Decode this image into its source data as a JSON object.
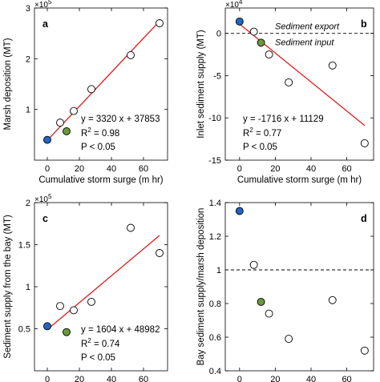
{
  "chart_data": [
    {
      "panel": "a",
      "type": "scatter",
      "xlabel": "Cumulative storm surge (m hr)",
      "ylabel": "Marsh deposition (MT)",
      "y_multiplier": "×10",
      "y_multiplier_exp": "5",
      "xlim": [
        -8,
        75
      ],
      "ylim": [
        0,
        3
      ],
      "xticks": [
        0,
        20,
        40,
        60
      ],
      "yticks": [
        1,
        2,
        3
      ],
      "points": [
        {
          "x": 0,
          "y": 0.4,
          "fill": "#2166c2"
        },
        {
          "x": 8,
          "y": 0.74,
          "fill": "#ffffff"
        },
        {
          "x": 12,
          "y": 0.57,
          "fill": "#6a9a3a"
        },
        {
          "x": 16.5,
          "y": 0.97,
          "fill": "#ffffff"
        },
        {
          "x": 27.5,
          "y": 1.4,
          "fill": "#ffffff"
        },
        {
          "x": 52,
          "y": 2.07,
          "fill": "#ffffff"
        },
        {
          "x": 70,
          "y": 2.7,
          "fill": "#ffffff"
        }
      ],
      "fit": {
        "x": [
          0,
          70
        ],
        "y": [
          0.39,
          2.74
        ],
        "color": "#e11b1b"
      },
      "annotations": [
        "y = 3320 x + 37853",
        "R",
        "2",
        " = 0.98",
        "P < 0.05"
      ]
    },
    {
      "panel": "b",
      "type": "scatter",
      "xlabel": "Cumulative storm surge (m hr)",
      "ylabel": "Inlet sediment supply (MT)",
      "y_multiplier": "×10",
      "y_multiplier_exp": "4",
      "xlim": [
        -8,
        75
      ],
      "ylim": [
        -15,
        3
      ],
      "xticks": [
        0,
        20,
        40,
        60
      ],
      "yticks": [
        -15,
        -10,
        -5,
        0
      ],
      "points": [
        {
          "x": 0,
          "y": 1.4,
          "fill": "#2166c2"
        },
        {
          "x": 8,
          "y": 0.2,
          "fill": "#ffffff"
        },
        {
          "x": 12,
          "y": -1.1,
          "fill": "#6a9a3a"
        },
        {
          "x": 16.5,
          "y": -2.5,
          "fill": "#ffffff"
        },
        {
          "x": 27.5,
          "y": -5.8,
          "fill": "#ffffff"
        },
        {
          "x": 52,
          "y": -3.8,
          "fill": "#ffffff"
        },
        {
          "x": 70,
          "y": -13.0,
          "fill": "#ffffff"
        }
      ],
      "fit": {
        "x": [
          0,
          70
        ],
        "y": [
          1.11,
          -10.9
        ],
        "color": "#e11b1b"
      },
      "hline": 0,
      "labels": [
        "Sediment export",
        "Sediment input"
      ],
      "annotations": [
        "y = -1716 x + 11129",
        "R",
        "2",
        " = 0.77",
        "P < 0.05"
      ]
    },
    {
      "panel": "c",
      "type": "scatter",
      "xlabel": "Cumulative storm surge (m hr)",
      "ylabel": "Sediment supply from the bay (MT)",
      "y_multiplier": "×10",
      "y_multiplier_exp": "5",
      "xlim": [
        -8,
        75
      ],
      "ylim": [
        0,
        2
      ],
      "xticks": [
        0,
        20,
        40,
        60
      ],
      "yticks": [
        0.5,
        1,
        1.5,
        2
      ],
      "points": [
        {
          "x": 0,
          "y": 0.53,
          "fill": "#2166c2"
        },
        {
          "x": 8,
          "y": 0.77,
          "fill": "#ffffff"
        },
        {
          "x": 12,
          "y": 0.46,
          "fill": "#6a9a3a"
        },
        {
          "x": 16.5,
          "y": 0.72,
          "fill": "#ffffff"
        },
        {
          "x": 27.5,
          "y": 0.82,
          "fill": "#ffffff"
        },
        {
          "x": 52,
          "y": 1.7,
          "fill": "#ffffff"
        },
        {
          "x": 70,
          "y": 1.4,
          "fill": "#ffffff"
        }
      ],
      "fit": {
        "x": [
          0,
          70
        ],
        "y": [
          0.49,
          1.61
        ],
        "color": "#e11b1b"
      },
      "annotations": [
        "y = 1604 x + 48982",
        "R",
        "2",
        " = 0.74",
        "P < 0.05"
      ]
    },
    {
      "panel": "d",
      "type": "scatter",
      "xlabel": "Cumulative storm surge (m hr)",
      "ylabel": "Bay sediment supply/marsh deposition",
      "xlim": [
        -8,
        75
      ],
      "ylim": [
        0.4,
        1.4
      ],
      "xticks": [
        0,
        20,
        40,
        60
      ],
      "yticks": [
        0.4,
        0.6,
        0.8,
        1,
        1.2,
        1.4
      ],
      "ytick_labels": [
        "0.4",
        "0.6",
        "0.8",
        "1",
        "1.2",
        "1.4"
      ],
      "points": [
        {
          "x": 0,
          "y": 1.35,
          "fill": "#2166c2"
        },
        {
          "x": 8,
          "y": 1.03,
          "fill": "#ffffff"
        },
        {
          "x": 12,
          "y": 0.81,
          "fill": "#6a9a3a"
        },
        {
          "x": 16.5,
          "y": 0.74,
          "fill": "#ffffff"
        },
        {
          "x": 27.5,
          "y": 0.59,
          "fill": "#ffffff"
        },
        {
          "x": 52,
          "y": 0.82,
          "fill": "#ffffff"
        },
        {
          "x": 70,
          "y": 0.52,
          "fill": "#ffffff"
        }
      ],
      "hline": 1
    }
  ]
}
